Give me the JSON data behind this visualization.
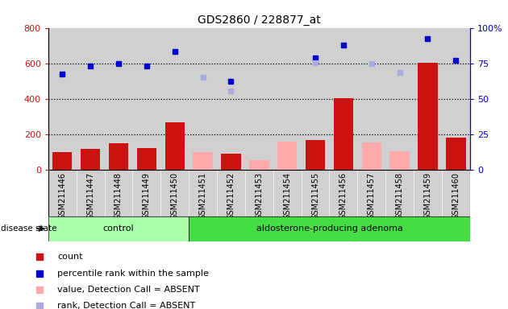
{
  "title": "GDS2860 / 228877_at",
  "samples": [
    "GSM211446",
    "GSM211447",
    "GSM211448",
    "GSM211449",
    "GSM211450",
    "GSM211451",
    "GSM211452",
    "GSM211453",
    "GSM211454",
    "GSM211455",
    "GSM211456",
    "GSM211457",
    "GSM211458",
    "GSM211459",
    "GSM211460"
  ],
  "count_values": [
    100,
    120,
    150,
    125,
    270,
    null,
    90,
    null,
    null,
    170,
    405,
    null,
    null,
    605,
    180
  ],
  "count_absent": [
    null,
    null,
    null,
    null,
    null,
    100,
    null,
    55,
    160,
    null,
    null,
    155,
    105,
    null,
    null
  ],
  "percentile_values": [
    540,
    585,
    598,
    583,
    665,
    null,
    497,
    null,
    null,
    630,
    703,
    null,
    null,
    740,
    615
  ],
  "percentile_absent": [
    null,
    null,
    null,
    null,
    null,
    522,
    443,
    null,
    null,
    605,
    null,
    597,
    548,
    null,
    null
  ],
  "group_control_indices": [
    0,
    1,
    2,
    3,
    4
  ],
  "group_adenoma_indices": [
    5,
    6,
    7,
    8,
    9,
    10,
    11,
    12,
    13,
    14
  ],
  "ylim_left": [
    0,
    800
  ],
  "ylim_right": [
    0,
    100
  ],
  "yticks_left": [
    0,
    200,
    400,
    600,
    800
  ],
  "yticks_right": [
    0,
    25,
    50,
    75,
    100
  ],
  "count_color": "#cc1111",
  "count_absent_color": "#ffaaaa",
  "percentile_color": "#0000cc",
  "percentile_absent_color": "#aaaadd",
  "grid_color": "black",
  "control_bg": "#aaffaa",
  "adenoma_bg": "#44dd44",
  "bar_bg": "#d0d0d0",
  "legend_items": [
    "count",
    "percentile rank within the sample",
    "value, Detection Call = ABSENT",
    "rank, Detection Call = ABSENT"
  ]
}
